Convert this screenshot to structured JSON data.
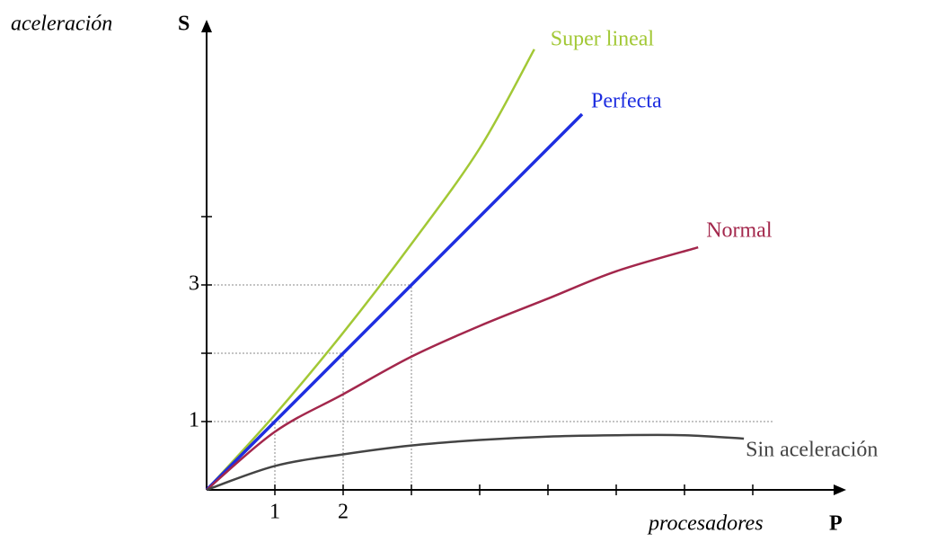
{
  "chart_data": {
    "type": "line",
    "y_label": "aceleración",
    "y_symbol": "S",
    "x_label": "procesadores",
    "x_symbol": "P",
    "xlim": [
      0,
      9.3
    ],
    "ylim": [
      0,
      6.8
    ],
    "xticks": [
      1,
      2
    ],
    "yticks": [
      1,
      3
    ],
    "xminor": [
      3,
      4,
      5,
      6,
      7,
      8
    ],
    "yminor": [
      2,
      4
    ],
    "series": [
      {
        "name": "Super lineal",
        "color": "#a2c835",
        "x": [
          0,
          1,
          2,
          3,
          4,
          4.8
        ],
        "values": [
          0,
          1.1,
          2.3,
          3.6,
          5.0,
          6.45
        ]
      },
      {
        "name": "Perfecta",
        "color": "#1e2ee0",
        "x": [
          0,
          1,
          2,
          3,
          4,
          5,
          5.5
        ],
        "values": [
          0,
          1,
          2,
          3,
          4,
          5,
          5.5
        ]
      },
      {
        "name": "Normal",
        "color": "#a3274c",
        "x": [
          0,
          1,
          2,
          3,
          4,
          5,
          6,
          7.2
        ],
        "values": [
          0,
          0.85,
          1.4,
          1.95,
          2.4,
          2.8,
          3.2,
          3.55
        ]
      },
      {
        "name": "Sin aceleración",
        "color": "#444444",
        "x": [
          0,
          1,
          2,
          3,
          4,
          5,
          6,
          7,
          7.87
        ],
        "values": [
          0,
          0.35,
          0.52,
          0.65,
          0.73,
          0.78,
          0.8,
          0.8,
          0.75
        ]
      }
    ]
  }
}
